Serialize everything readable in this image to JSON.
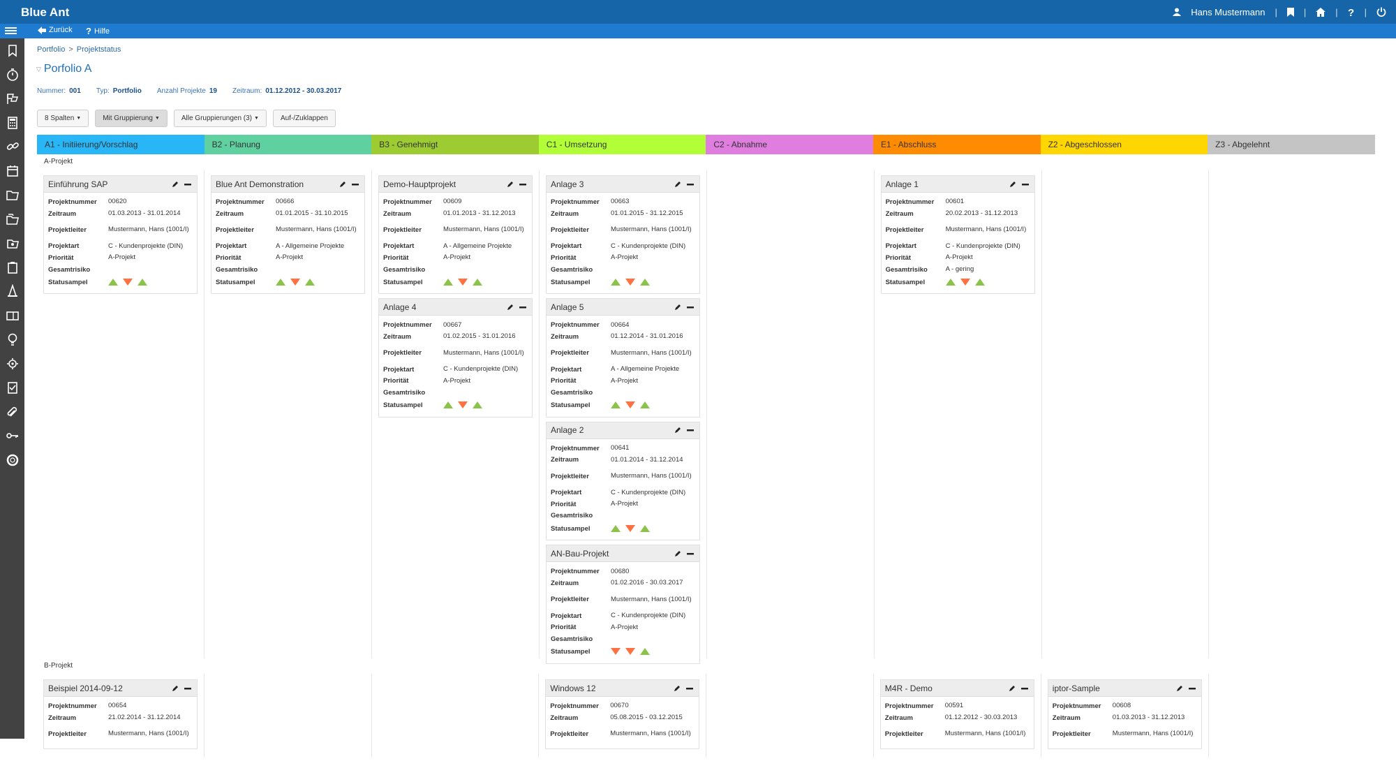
{
  "app": {
    "logo": "Blue Ant",
    "user": "Hans Mustermann"
  },
  "subbar": {
    "back": "Zurück",
    "help": "Hilfe"
  },
  "breadcrumb": {
    "root": "Portfolio",
    "sep": ">",
    "current": "Projektstatus"
  },
  "title": "Porfolio A",
  "meta": {
    "nummer_label": "Nummer:",
    "nummer": "001",
    "typ_label": "Typ:",
    "typ": "Portfolio",
    "anzahl_label": "Anzahl Projekte",
    "anzahl": "19",
    "zeitraum_label": "Zeitraum:",
    "zeitraum": "01.12.2012 - 30.03.2017"
  },
  "buttons": {
    "spalten": "8 Spalten",
    "gruppierung": "Mit Gruppierung",
    "alle": "Alle Gruppierungen (3)",
    "toggle": "Auf-/Zuklappen"
  },
  "labels": {
    "nr": "Projektnummer",
    "zeit": "Zeitraum",
    "leiter": "Projektleiter",
    "art": "Projektart",
    "prio": "Priorität",
    "risiko": "Gesamtrisiko",
    "ampel": "Statusampel"
  },
  "columns": [
    {
      "label": "A1 - Initiierung/Vorschlag",
      "color": "#29b6f6"
    },
    {
      "label": "B2 - Planung",
      "color": "#5fd0a0"
    },
    {
      "label": "B3 - Genehmigt",
      "color": "#9ccc32"
    },
    {
      "label": "C1 - Umsetzung",
      "color": "#b2ff38"
    },
    {
      "label": "C2 - Abnahme",
      "color": "#e07ee0"
    },
    {
      "label": "E1 - Abschluss",
      "color": "#ff8c00"
    },
    {
      "label": "Z2 - Abgeschlossen",
      "color": "#ffd600"
    },
    {
      "label": "Z3 - Abgelehnt",
      "color": "#c4c4c4"
    }
  ],
  "groups": [
    {
      "label": "A-Projekt",
      "lanes": [
        [
          {
            "title": "Einführung SAP",
            "nr": "00620",
            "zeit": "01.03.2013 - 31.01.2014",
            "leiter": "Mustermann, Hans (1001/I)",
            "art": "C - Kundenprojekte (DIN)",
            "prio": "A-Projekt",
            "risiko": "",
            "ampel": [
              "up",
              "down",
              "up"
            ]
          }
        ],
        [
          {
            "title": "Blue Ant Demonstration",
            "nr": "00666",
            "zeit": "01.01.2015 - 31.10.2015",
            "leiter": "Mustermann, Hans (1001/I)",
            "art": "A - Allgemeine Projekte",
            "prio": "A-Projekt",
            "risiko": "",
            "ampel": [
              "up",
              "down",
              "up"
            ]
          }
        ],
        [
          {
            "title": "Demo-Hauptprojekt",
            "nr": "00609",
            "zeit": "01.01.2013 - 31.12.2013",
            "leiter": "Mustermann, Hans (1001/I)",
            "art": "A - Allgemeine Projekte",
            "prio": "A-Projekt",
            "risiko": "",
            "ampel": [
              "up",
              "down",
              "up"
            ]
          },
          {
            "title": "Anlage 4",
            "nr": "00667",
            "zeit": "01.02.2015 - 31.01.2016",
            "leiter": "Mustermann, Hans (1001/I)",
            "art": "C - Kundenprojekte (DIN)",
            "prio": "A-Projekt",
            "risiko": "",
            "ampel": [
              "up",
              "down",
              "up"
            ]
          }
        ],
        [
          {
            "title": "Anlage 3",
            "nr": "00663",
            "zeit": "01.01.2015 - 31.12.2015",
            "leiter": "Mustermann, Hans (1001/I)",
            "art": "C - Kundenprojekte (DIN)",
            "prio": "A-Projekt",
            "risiko": "",
            "ampel": [
              "up",
              "down",
              "up"
            ]
          },
          {
            "title": "Anlage 5",
            "nr": "00664",
            "zeit": "01.12.2014 - 31.01.2016",
            "leiter": "Mustermann, Hans (1001/I)",
            "art": "A - Allgemeine Projekte",
            "prio": "A-Projekt",
            "risiko": "",
            "ampel": [
              "up",
              "down",
              "up"
            ]
          },
          {
            "title": "Anlage 2",
            "nr": "00641",
            "zeit": "01.01.2014 - 31.12.2014",
            "leiter": "Mustermann, Hans (1001/I)",
            "art": "C - Kundenprojekte (DIN)",
            "prio": "A-Projekt",
            "risiko": "",
            "ampel": [
              "up",
              "down",
              "up"
            ]
          },
          {
            "title": "AN-Bau-Projekt",
            "nr": "00680",
            "zeit": "01.02.2016 - 30.03.2017",
            "leiter": "Mustermann, Hans (1001/I)",
            "art": "C - Kundenprojekte (DIN)",
            "prio": "A-Projekt",
            "risiko": "",
            "ampel": [
              "down",
              "down",
              "up"
            ]
          }
        ],
        [],
        [
          {
            "title": "Anlage 1",
            "nr": "00601",
            "zeit": "20.02.2013 - 31.12.2013",
            "leiter": "Mustermann, Hans (1001/I)",
            "art": "C - Kundenprojekte (DIN)",
            "prio": "A-Projekt",
            "risiko": "A - gering",
            "ampel": [
              "up",
              "down",
              "up"
            ]
          }
        ],
        [],
        []
      ]
    },
    {
      "label": "B-Projekt",
      "lanes": [
        [
          {
            "title": "Beispiel 2014-09-12",
            "nr": "00654",
            "zeit": "21.02.2014 - 31.12.2014",
            "leiter": "Mustermann, Hans (1001/I)",
            "art": "",
            "prio": "",
            "risiko": "",
            "ampel": []
          }
        ],
        [],
        [],
        [
          {
            "title": "Windows 12",
            "nr": "00670",
            "zeit": "05.08.2015 - 03.12.2015",
            "leiter": "Mustermann, Hans (1001/I)",
            "art": "",
            "prio": "",
            "risiko": "",
            "ampel": []
          }
        ],
        [],
        [
          {
            "title": "M4R - Demo",
            "nr": "00591",
            "zeit": "01.12.2012 - 30.03.2013",
            "leiter": "Mustermann, Hans (1001/I)",
            "art": "",
            "prio": "",
            "risiko": "",
            "ampel": []
          }
        ],
        [
          {
            "title": "iptor-Sample",
            "nr": "00608",
            "zeit": "01.03.2013 - 31.12.2013",
            "leiter": "Mustermann, Hans (1001/I)",
            "art": "",
            "prio": "",
            "risiko": "",
            "ampel": []
          }
        ],
        []
      ]
    }
  ],
  "sidebar_icons": [
    "bookmark-icon",
    "stopwatch-icon",
    "flags-icon",
    "calculator-icon",
    "link-icon",
    "calendar-icon",
    "folder-icon",
    "portfolio-icon",
    "folders-icon",
    "clipboard-icon",
    "cone-icon",
    "card-icon",
    "lightbulb-icon",
    "settings-icon",
    "checklist-icon",
    "paperclip-icon",
    "key-icon",
    "lifebuoy-icon"
  ]
}
